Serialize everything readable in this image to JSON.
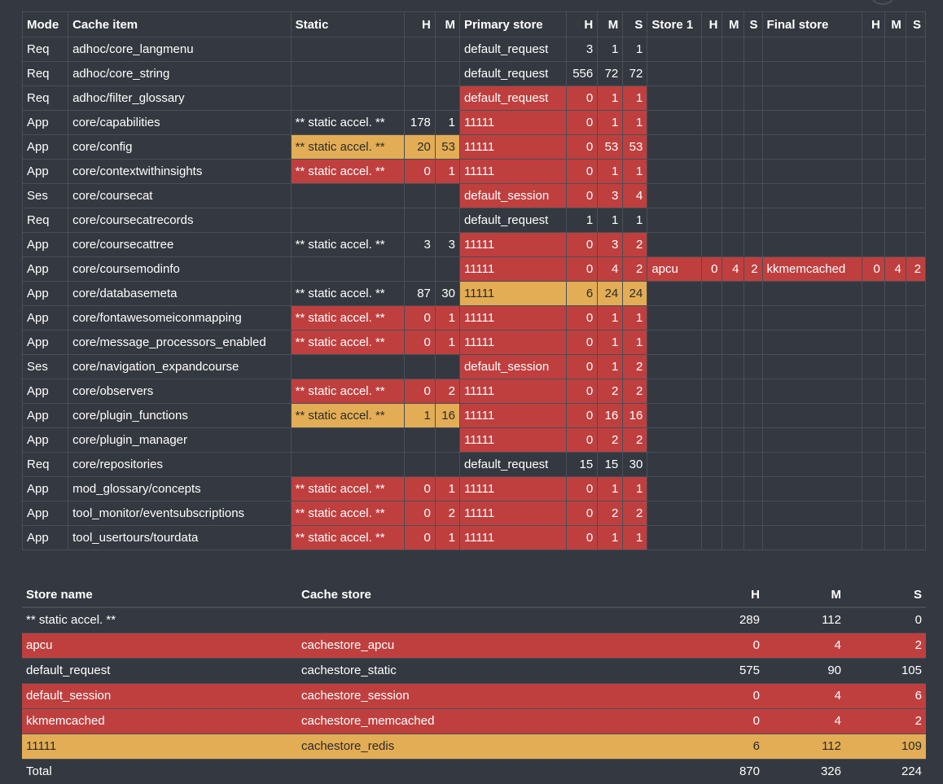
{
  "cache_table": {
    "headers": {
      "mode": "Mode",
      "item": "Cache item",
      "static": "Static",
      "static_h": "H",
      "static_m": "M",
      "primary": "Primary store",
      "primary_h": "H",
      "primary_m": "M",
      "primary_s": "S",
      "store1": "Store 1",
      "store1_h": "H",
      "store1_m": "M",
      "store1_s": "S",
      "final": "Final store",
      "final_h": "H",
      "final_m": "M",
      "final_s": "S"
    },
    "rows": [
      {
        "mode": "Req",
        "item": "adhoc/core_langmenu",
        "static": "",
        "static_h": "",
        "static_m": "",
        "primary": "default_request",
        "ph": "3",
        "pm": "1",
        "ps": "1",
        "s1": "",
        "s1h": "",
        "s1m": "",
        "s1s": "",
        "fin": "",
        "fh": "",
        "fm": "",
        "fs": "",
        "static_color": "none",
        "primary_color": "none",
        "s1_color": "none",
        "final_color": "none"
      },
      {
        "mode": "Req",
        "item": "adhoc/core_string",
        "static": "",
        "static_h": "",
        "static_m": "",
        "primary": "default_request",
        "ph": "556",
        "pm": "72",
        "ps": "72",
        "s1": "",
        "s1h": "",
        "s1m": "",
        "s1s": "",
        "fin": "",
        "fh": "",
        "fm": "",
        "fs": "",
        "static_color": "none",
        "primary_color": "none",
        "s1_color": "none",
        "final_color": "none"
      },
      {
        "mode": "Req",
        "item": "adhoc/filter_glossary",
        "static": "",
        "static_h": "",
        "static_m": "",
        "primary": "default_request",
        "ph": "0",
        "pm": "1",
        "ps": "1",
        "s1": "",
        "s1h": "",
        "s1m": "",
        "s1s": "",
        "fin": "",
        "fh": "",
        "fm": "",
        "fs": "",
        "static_color": "none",
        "primary_color": "red",
        "s1_color": "none",
        "final_color": "none"
      },
      {
        "mode": "App",
        "item": "core/capabilities",
        "static": "** static accel. **",
        "static_h": "178",
        "static_m": "1",
        "primary": "11111",
        "ph": "0",
        "pm": "1",
        "ps": "1",
        "s1": "",
        "s1h": "",
        "s1m": "",
        "s1s": "",
        "fin": "",
        "fh": "",
        "fm": "",
        "fs": "",
        "static_color": "none",
        "primary_color": "red",
        "s1_color": "none",
        "final_color": "none"
      },
      {
        "mode": "App",
        "item": "core/config",
        "static": "** static accel. **",
        "static_h": "20",
        "static_m": "53",
        "primary": "11111",
        "ph": "0",
        "pm": "53",
        "ps": "53",
        "s1": "",
        "s1h": "",
        "s1m": "",
        "s1s": "",
        "fin": "",
        "fh": "",
        "fm": "",
        "fs": "",
        "static_color": "amber",
        "primary_color": "red",
        "s1_color": "none",
        "final_color": "none"
      },
      {
        "mode": "App",
        "item": "core/contextwithinsights",
        "static": "** static accel. **",
        "static_h": "0",
        "static_m": "1",
        "primary": "11111",
        "ph": "0",
        "pm": "1",
        "ps": "1",
        "s1": "",
        "s1h": "",
        "s1m": "",
        "s1s": "",
        "fin": "",
        "fh": "",
        "fm": "",
        "fs": "",
        "static_color": "red",
        "primary_color": "red",
        "s1_color": "none",
        "final_color": "none"
      },
      {
        "mode": "Ses",
        "item": "core/coursecat",
        "static": "",
        "static_h": "",
        "static_m": "",
        "primary": "default_session",
        "ph": "0",
        "pm": "3",
        "ps": "4",
        "s1": "",
        "s1h": "",
        "s1m": "",
        "s1s": "",
        "fin": "",
        "fh": "",
        "fm": "",
        "fs": "",
        "static_color": "none",
        "primary_color": "red",
        "s1_color": "none",
        "final_color": "none"
      },
      {
        "mode": "Req",
        "item": "core/coursecatrecords",
        "static": "",
        "static_h": "",
        "static_m": "",
        "primary": "default_request",
        "ph": "1",
        "pm": "1",
        "ps": "1",
        "s1": "",
        "s1h": "",
        "s1m": "",
        "s1s": "",
        "fin": "",
        "fh": "",
        "fm": "",
        "fs": "",
        "static_color": "none",
        "primary_color": "none",
        "s1_color": "none",
        "final_color": "none"
      },
      {
        "mode": "App",
        "item": "core/coursecattree",
        "static": "** static accel. **",
        "static_h": "3",
        "static_m": "3",
        "primary": "11111",
        "ph": "0",
        "pm": "3",
        "ps": "2",
        "s1": "",
        "s1h": "",
        "s1m": "",
        "s1s": "",
        "fin": "",
        "fh": "",
        "fm": "",
        "fs": "",
        "static_color": "none",
        "primary_color": "red",
        "s1_color": "none",
        "final_color": "none"
      },
      {
        "mode": "App",
        "item": "core/coursemodinfo",
        "static": "",
        "static_h": "",
        "static_m": "",
        "primary": "11111",
        "ph": "0",
        "pm": "4",
        "ps": "2",
        "s1": "apcu",
        "s1h": "0",
        "s1m": "4",
        "s1s": "2",
        "fin": "kkmemcached",
        "fh": "0",
        "fm": "4",
        "fs": "2",
        "static_color": "none",
        "primary_color": "red",
        "s1_color": "red",
        "final_color": "red"
      },
      {
        "mode": "App",
        "item": "core/databasemeta",
        "static": "** static accel. **",
        "static_h": "87",
        "static_m": "30",
        "primary": "11111",
        "ph": "6",
        "pm": "24",
        "ps": "24",
        "s1": "",
        "s1h": "",
        "s1m": "",
        "s1s": "",
        "fin": "",
        "fh": "",
        "fm": "",
        "fs": "",
        "static_color": "none",
        "primary_color": "amber",
        "s1_color": "none",
        "final_color": "none"
      },
      {
        "mode": "App",
        "item": "core/fontawesomeiconmapping",
        "static": "** static accel. **",
        "static_h": "0",
        "static_m": "1",
        "primary": "11111",
        "ph": "0",
        "pm": "1",
        "ps": "1",
        "s1": "",
        "s1h": "",
        "s1m": "",
        "s1s": "",
        "fin": "",
        "fh": "",
        "fm": "",
        "fs": "",
        "static_color": "red",
        "primary_color": "red",
        "s1_color": "none",
        "final_color": "none"
      },
      {
        "mode": "App",
        "item": "core/message_processors_enabled",
        "static": "** static accel. **",
        "static_h": "0",
        "static_m": "1",
        "primary": "11111",
        "ph": "0",
        "pm": "1",
        "ps": "1",
        "s1": "",
        "s1h": "",
        "s1m": "",
        "s1s": "",
        "fin": "",
        "fh": "",
        "fm": "",
        "fs": "",
        "static_color": "red",
        "primary_color": "red",
        "s1_color": "none",
        "final_color": "none"
      },
      {
        "mode": "Ses",
        "item": "core/navigation_expandcourse",
        "static": "",
        "static_h": "",
        "static_m": "",
        "primary": "default_session",
        "ph": "0",
        "pm": "1",
        "ps": "2",
        "s1": "",
        "s1h": "",
        "s1m": "",
        "s1s": "",
        "fin": "",
        "fh": "",
        "fm": "",
        "fs": "",
        "static_color": "none",
        "primary_color": "red",
        "s1_color": "none",
        "final_color": "none"
      },
      {
        "mode": "App",
        "item": "core/observers",
        "static": "** static accel. **",
        "static_h": "0",
        "static_m": "2",
        "primary": "11111",
        "ph": "0",
        "pm": "2",
        "ps": "2",
        "s1": "",
        "s1h": "",
        "s1m": "",
        "s1s": "",
        "fin": "",
        "fh": "",
        "fm": "",
        "fs": "",
        "static_color": "red",
        "primary_color": "red",
        "s1_color": "none",
        "final_color": "none"
      },
      {
        "mode": "App",
        "item": "core/plugin_functions",
        "static": "** static accel. **",
        "static_h": "1",
        "static_m": "16",
        "primary": "11111",
        "ph": "0",
        "pm": "16",
        "ps": "16",
        "s1": "",
        "s1h": "",
        "s1m": "",
        "s1s": "",
        "fin": "",
        "fh": "",
        "fm": "",
        "fs": "",
        "static_color": "amber",
        "primary_color": "red",
        "s1_color": "none",
        "final_color": "none"
      },
      {
        "mode": "App",
        "item": "core/plugin_manager",
        "static": "",
        "static_h": "",
        "static_m": "",
        "primary": "11111",
        "ph": "0",
        "pm": "2",
        "ps": "2",
        "s1": "",
        "s1h": "",
        "s1m": "",
        "s1s": "",
        "fin": "",
        "fh": "",
        "fm": "",
        "fs": "",
        "static_color": "none",
        "primary_color": "red",
        "s1_color": "none",
        "final_color": "none"
      },
      {
        "mode": "Req",
        "item": "core/repositories",
        "static": "",
        "static_h": "",
        "static_m": "",
        "primary": "default_request",
        "ph": "15",
        "pm": "15",
        "ps": "30",
        "s1": "",
        "s1h": "",
        "s1m": "",
        "s1s": "",
        "fin": "",
        "fh": "",
        "fm": "",
        "fs": "",
        "static_color": "none",
        "primary_color": "none",
        "s1_color": "none",
        "final_color": "none"
      },
      {
        "mode": "App",
        "item": "mod_glossary/concepts",
        "static": "** static accel. **",
        "static_h": "0",
        "static_m": "1",
        "primary": "11111",
        "ph": "0",
        "pm": "1",
        "ps": "1",
        "s1": "",
        "s1h": "",
        "s1m": "",
        "s1s": "",
        "fin": "",
        "fh": "",
        "fm": "",
        "fs": "",
        "static_color": "red",
        "primary_color": "red",
        "s1_color": "none",
        "final_color": "none"
      },
      {
        "mode": "App",
        "item": "tool_monitor/eventsubscriptions",
        "static": "** static accel. **",
        "static_h": "0",
        "static_m": "2",
        "primary": "11111",
        "ph": "0",
        "pm": "2",
        "ps": "2",
        "s1": "",
        "s1h": "",
        "s1m": "",
        "s1s": "",
        "fin": "",
        "fh": "",
        "fm": "",
        "fs": "",
        "static_color": "red",
        "primary_color": "red",
        "s1_color": "none",
        "final_color": "none"
      },
      {
        "mode": "App",
        "item": "tool_usertours/tourdata",
        "static": "** static accel. **",
        "static_h": "0",
        "static_m": "1",
        "primary": "11111",
        "ph": "0",
        "pm": "1",
        "ps": "1",
        "s1": "",
        "s1h": "",
        "s1m": "",
        "s1s": "",
        "fin": "",
        "fh": "",
        "fm": "",
        "fs": "",
        "static_color": "red",
        "primary_color": "red",
        "s1_color": "none",
        "final_color": "none"
      }
    ]
  },
  "store_table": {
    "headers": {
      "name": "Store name",
      "store": "Cache store",
      "h": "H",
      "m": "M",
      "s": "S"
    },
    "rows": [
      {
        "name": "** static accel. **",
        "store": "",
        "h": "289",
        "m": "112",
        "s": "0",
        "color": "none"
      },
      {
        "name": "apcu",
        "store": "cachestore_apcu",
        "h": "0",
        "m": "4",
        "s": "2",
        "color": "red"
      },
      {
        "name": "default_request",
        "store": "cachestore_static",
        "h": "575",
        "m": "90",
        "s": "105",
        "color": "none"
      },
      {
        "name": "default_session",
        "store": "cachestore_session",
        "h": "0",
        "m": "4",
        "s": "6",
        "color": "red"
      },
      {
        "name": "kkmemcached",
        "store": "cachestore_memcached",
        "h": "0",
        "m": "4",
        "s": "2",
        "color": "red"
      },
      {
        "name": "11111",
        "store": "cachestore_redis",
        "h": "6",
        "m": "112",
        "s": "109",
        "color": "amber"
      }
    ],
    "total": {
      "label": "Total",
      "h": "870",
      "m": "326",
      "s": "224"
    }
  },
  "colors": {
    "red": "#bf3f3f",
    "amber": "#e3ad55",
    "background": "#343840",
    "border": "#4a4e56"
  }
}
